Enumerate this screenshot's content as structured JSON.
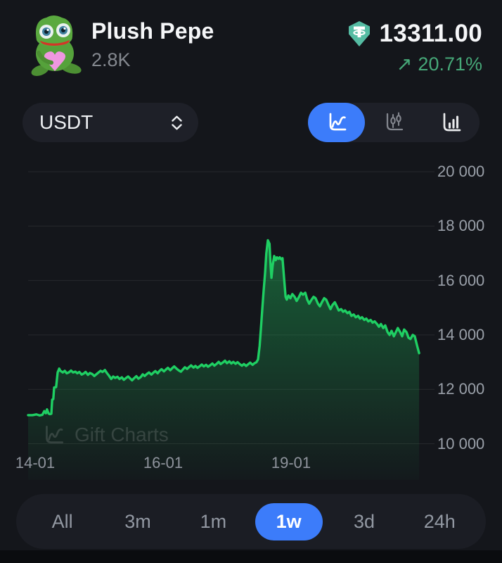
{
  "header": {
    "title": "Plush Pepe",
    "subtitle": "2.8K",
    "price": "13311.00",
    "change_arrow": "↗",
    "change": "20.71%",
    "change_color": "#46a878",
    "tether_color": "#55bca3"
  },
  "controls": {
    "currency": {
      "value": "USDT"
    },
    "chart_types": [
      {
        "name": "line",
        "selected": true
      },
      {
        "name": "candlestick",
        "selected": false
      },
      {
        "name": "bars",
        "selected": false
      }
    ],
    "accent_blue": "#3c7cfa"
  },
  "chart_data": {
    "type": "area",
    "title": "Plush Pepe price in USDT, 1w range",
    "line_color": "#1fcf63",
    "grid": "horizontal",
    "ylim": [
      10000,
      20000
    ],
    "y_ticks": [
      20000,
      18000,
      16000,
      14000,
      12000,
      10000
    ],
    "y_tick_labels": [
      "20 000",
      "18 000",
      "16 000",
      "14 000",
      "12 000",
      "10 000"
    ],
    "x_tick_labels": [
      "14-01",
      "16-01",
      "19-01"
    ],
    "x_tick_pos": [
      0.018,
      0.343,
      0.668
    ],
    "watermark": "Gift Charts",
    "points": [
      [
        0.0,
        11050
      ],
      [
        0.011,
        11050
      ],
      [
        0.021,
        11080
      ],
      [
        0.029,
        11040
      ],
      [
        0.036,
        11060
      ],
      [
        0.041,
        11200
      ],
      [
        0.045,
        11120
      ],
      [
        0.048,
        11260
      ],
      [
        0.052,
        11110
      ],
      [
        0.055,
        11090
      ],
      [
        0.059,
        11100
      ],
      [
        0.061,
        11620
      ],
      [
        0.064,
        11640
      ],
      [
        0.066,
        12070
      ],
      [
        0.071,
        12080
      ],
      [
        0.075,
        12620
      ],
      [
        0.079,
        12760
      ],
      [
        0.082,
        12680
      ],
      [
        0.088,
        12620
      ],
      [
        0.093,
        12680
      ],
      [
        0.098,
        12590
      ],
      [
        0.104,
        12630
      ],
      [
        0.109,
        12690
      ],
      [
        0.114,
        12620
      ],
      [
        0.12,
        12650
      ],
      [
        0.125,
        12590
      ],
      [
        0.13,
        12640
      ],
      [
        0.136,
        12540
      ],
      [
        0.141,
        12580
      ],
      [
        0.146,
        12640
      ],
      [
        0.152,
        12530
      ],
      [
        0.157,
        12600
      ],
      [
        0.163,
        12560
      ],
      [
        0.168,
        12490
      ],
      [
        0.173,
        12550
      ],
      [
        0.179,
        12620
      ],
      [
        0.184,
        12680
      ],
      [
        0.189,
        12640
      ],
      [
        0.195,
        12710
      ],
      [
        0.2,
        12600
      ],
      [
        0.205,
        12510
      ],
      [
        0.211,
        12380
      ],
      [
        0.216,
        12470
      ],
      [
        0.221,
        12420
      ],
      [
        0.227,
        12460
      ],
      [
        0.232,
        12380
      ],
      [
        0.238,
        12440
      ],
      [
        0.243,
        12350
      ],
      [
        0.248,
        12410
      ],
      [
        0.254,
        12470
      ],
      [
        0.259,
        12400
      ],
      [
        0.264,
        12330
      ],
      [
        0.27,
        12420
      ],
      [
        0.275,
        12480
      ],
      [
        0.28,
        12390
      ],
      [
        0.286,
        12450
      ],
      [
        0.291,
        12550
      ],
      [
        0.296,
        12490
      ],
      [
        0.302,
        12570
      ],
      [
        0.307,
        12620
      ],
      [
        0.313,
        12540
      ],
      [
        0.318,
        12610
      ],
      [
        0.323,
        12670
      ],
      [
        0.329,
        12590
      ],
      [
        0.334,
        12680
      ],
      [
        0.339,
        12740
      ],
      [
        0.345,
        12660
      ],
      [
        0.35,
        12730
      ],
      [
        0.355,
        12790
      ],
      [
        0.361,
        12700
      ],
      [
        0.366,
        12780
      ],
      [
        0.371,
        12840
      ],
      [
        0.377,
        12760
      ],
      [
        0.382,
        12700
      ],
      [
        0.388,
        12650
      ],
      [
        0.393,
        12730
      ],
      [
        0.398,
        12810
      ],
      [
        0.404,
        12750
      ],
      [
        0.409,
        12820
      ],
      [
        0.414,
        12880
      ],
      [
        0.42,
        12800
      ],
      [
        0.425,
        12860
      ],
      [
        0.43,
        12790
      ],
      [
        0.436,
        12850
      ],
      [
        0.441,
        12910
      ],
      [
        0.446,
        12840
      ],
      [
        0.452,
        12900
      ],
      [
        0.457,
        12830
      ],
      [
        0.463,
        12890
      ],
      [
        0.468,
        12950
      ],
      [
        0.473,
        12870
      ],
      [
        0.479,
        12940
      ],
      [
        0.484,
        13010
      ],
      [
        0.489,
        12930
      ],
      [
        0.495,
        12990
      ],
      [
        0.5,
        13050
      ],
      [
        0.505,
        12960
      ],
      [
        0.511,
        13030
      ],
      [
        0.516,
        12950
      ],
      [
        0.521,
        13010
      ],
      [
        0.527,
        12940
      ],
      [
        0.532,
        13000
      ],
      [
        0.538,
        12920
      ],
      [
        0.543,
        12870
      ],
      [
        0.548,
        12930
      ],
      [
        0.554,
        12860
      ],
      [
        0.559,
        12920
      ],
      [
        0.564,
        12980
      ],
      [
        0.57,
        12900
      ],
      [
        0.575,
        12960
      ],
      [
        0.58,
        13000
      ],
      [
        0.584,
        13100
      ],
      [
        0.588,
        13600
      ],
      [
        0.591,
        14200
      ],
      [
        0.595,
        15000
      ],
      [
        0.598,
        15600
      ],
      [
        0.602,
        16300
      ],
      [
        0.605,
        17000
      ],
      [
        0.609,
        17480
      ],
      [
        0.613,
        17350
      ],
      [
        0.616,
        16500
      ],
      [
        0.618,
        16100
      ],
      [
        0.621,
        16550
      ],
      [
        0.625,
        16900
      ],
      [
        0.629,
        16750
      ],
      [
        0.632,
        16850
      ],
      [
        0.636,
        16800
      ],
      [
        0.639,
        16850
      ],
      [
        0.643,
        16780
      ],
      [
        0.646,
        16820
      ],
      [
        0.65,
        16100
      ],
      [
        0.654,
        15400
      ],
      [
        0.657,
        15300
      ],
      [
        0.661,
        15450
      ],
      [
        0.666,
        15350
      ],
      [
        0.671,
        15500
      ],
      [
        0.677,
        15400
      ],
      [
        0.682,
        15250
      ],
      [
        0.688,
        15400
      ],
      [
        0.693,
        15550
      ],
      [
        0.698,
        15480
      ],
      [
        0.704,
        15550
      ],
      [
        0.709,
        15300
      ],
      [
        0.714,
        15150
      ],
      [
        0.72,
        15300
      ],
      [
        0.725,
        15400
      ],
      [
        0.73,
        15350
      ],
      [
        0.736,
        15150
      ],
      [
        0.741,
        15050
      ],
      [
        0.746,
        15200
      ],
      [
        0.752,
        15350
      ],
      [
        0.757,
        15300
      ],
      [
        0.763,
        15100
      ],
      [
        0.768,
        14950
      ],
      [
        0.773,
        15100
      ],
      [
        0.779,
        15200
      ],
      [
        0.784,
        15050
      ],
      [
        0.789,
        14900
      ],
      [
        0.795,
        14950
      ],
      [
        0.8,
        14850
      ],
      [
        0.805,
        14900
      ],
      [
        0.811,
        14800
      ],
      [
        0.816,
        14850
      ],
      [
        0.821,
        14700
      ],
      [
        0.827,
        14750
      ],
      [
        0.832,
        14650
      ],
      [
        0.838,
        14700
      ],
      [
        0.843,
        14600
      ],
      [
        0.848,
        14650
      ],
      [
        0.854,
        14550
      ],
      [
        0.859,
        14600
      ],
      [
        0.864,
        14500
      ],
      [
        0.87,
        14550
      ],
      [
        0.875,
        14450
      ],
      [
        0.88,
        14500
      ],
      [
        0.886,
        14400
      ],
      [
        0.891,
        14300
      ],
      [
        0.896,
        14400
      ],
      [
        0.902,
        14250
      ],
      [
        0.907,
        14350
      ],
      [
        0.913,
        14100
      ],
      [
        0.918,
        14000
      ],
      [
        0.923,
        14150
      ],
      [
        0.929,
        13950
      ],
      [
        0.934,
        14100
      ],
      [
        0.939,
        14250
      ],
      [
        0.945,
        14100
      ],
      [
        0.95,
        13950
      ],
      [
        0.955,
        14200
      ],
      [
        0.961,
        14100
      ],
      [
        0.966,
        13900
      ],
      [
        0.971,
        13850
      ],
      [
        0.977,
        14000
      ],
      [
        0.982,
        13950
      ],
      [
        0.988,
        13600
      ],
      [
        0.993,
        13330
      ]
    ]
  },
  "ranges": {
    "items": [
      {
        "label": "All",
        "selected": false
      },
      {
        "label": "3m",
        "selected": false
      },
      {
        "label": "1m",
        "selected": false
      },
      {
        "label": "1w",
        "selected": true
      },
      {
        "label": "3d",
        "selected": false
      },
      {
        "label": "24h",
        "selected": false
      }
    ]
  }
}
